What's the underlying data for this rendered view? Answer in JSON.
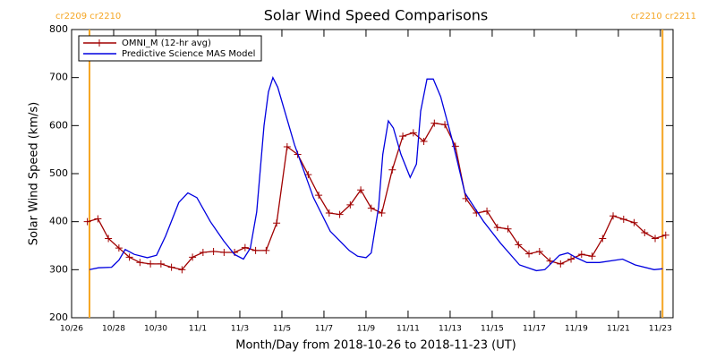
{
  "chart_data": {
    "type": "line",
    "title": "Solar Wind Speed Comparisons",
    "x_label": "Month/Day from 2018-10-26 to 2018-11-23 (UT)",
    "y_label": "Solar Wind Speed (km/s)",
    "xlim": [
      0,
      28.6
    ],
    "ylim": [
      200,
      800
    ],
    "yticks": [
      200,
      300,
      400,
      500,
      600,
      700,
      800
    ],
    "xticks": [
      {
        "value": 0,
        "label": "10/26"
      },
      {
        "value": 2,
        "label": "10/28"
      },
      {
        "value": 4,
        "label": "10/30"
      },
      {
        "value": 6,
        "label": "11/1"
      },
      {
        "value": 8,
        "label": "11/3"
      },
      {
        "value": 10,
        "label": "11/5"
      },
      {
        "value": 12,
        "label": "11/7"
      },
      {
        "value": 14,
        "label": "11/9"
      },
      {
        "value": 16,
        "label": "11/11"
      },
      {
        "value": 18,
        "label": "11/13"
      },
      {
        "value": 20,
        "label": "11/15"
      },
      {
        "value": 22,
        "label": "11/17"
      },
      {
        "value": 24,
        "label": "11/19"
      },
      {
        "value": 26,
        "label": "11/21"
      },
      {
        "value": 28,
        "label": "11/23"
      }
    ],
    "markers": [
      {
        "x": 0.85,
        "label": "cr2209 cr2210",
        "color": "#f5a623"
      },
      {
        "x": 28.1,
        "label": "cr2210 cr2211",
        "color": "#f5a623"
      }
    ],
    "series": [
      {
        "name": "OMNI_M (12-hr avg)",
        "color": "#a00000",
        "symbols": true,
        "x": [
          0.75,
          1.25,
          1.75,
          2.25,
          2.75,
          3.25,
          3.75,
          4.25,
          4.75,
          5.25,
          5.75,
          6.25,
          6.75,
          7.25,
          7.75,
          8.25,
          8.75,
          9.25,
          9.75,
          10.25,
          10.75,
          11.25,
          11.75,
          12.25,
          12.75,
          13.25,
          13.75,
          14.25,
          14.75,
          15.25,
          15.75,
          16.25,
          16.75,
          17.25,
          17.75,
          18.25,
          18.75,
          19.25,
          19.75,
          20.25,
          20.75,
          21.25,
          21.75,
          22.25,
          22.75,
          23.25,
          23.75,
          24.25,
          24.75,
          25.25,
          25.75,
          26.25,
          26.75,
          27.25,
          27.75,
          28.25
        ],
        "values": [
          400,
          406,
          365,
          345,
          326,
          315,
          312,
          312,
          305,
          300,
          326,
          336,
          338,
          336,
          336,
          346,
          340,
          340,
          397,
          556,
          540,
          498,
          455,
          418,
          415,
          435,
          466,
          428,
          418,
          508,
          578,
          585,
          567,
          605,
          602,
          557,
          448,
          418,
          422,
          388,
          385,
          352,
          333,
          338,
          318,
          312,
          322,
          332,
          328,
          365,
          412,
          405,
          398,
          377,
          365,
          372
        ]
      },
      {
        "name": "Predictive Science MAS Model",
        "color": "#0000e0",
        "symbols": false,
        "x": [
          0.85,
          1.28,
          1.9,
          2.25,
          2.55,
          2.98,
          3.6,
          4.04,
          4.47,
          5.1,
          5.53,
          5.96,
          6.6,
          7.23,
          7.74,
          8.17,
          8.5,
          8.8,
          9.15,
          9.36,
          9.57,
          9.8,
          10.6,
          11.5,
          12.3,
          13.2,
          13.6,
          14.0,
          14.25,
          14.6,
          14.8,
          15.06,
          15.3,
          15.66,
          16.1,
          16.4,
          16.6,
          16.9,
          17.2,
          17.55,
          18.1,
          18.7,
          19.6,
          20.4,
          21.3,
          22.1,
          22.5,
          23.2,
          23.6,
          24.0,
          24.5,
          25.1,
          26.2,
          26.8,
          27.7,
          28.1
        ],
        "values": [
          300,
          304,
          305,
          320,
          342,
          332,
          325,
          330,
          370,
          440,
          460,
          450,
          400,
          360,
          332,
          322,
          345,
          420,
          600,
          670,
          700,
          680,
          560,
          450,
          380,
          340,
          328,
          325,
          335,
          430,
          540,
          610,
          595,
          540,
          492,
          520,
          630,
          697,
          697,
          660,
          570,
          460,
          400,
          355,
          310,
          298,
          300,
          330,
          335,
          325,
          315,
          315,
          322,
          310,
          300,
          302
        ]
      }
    ]
  }
}
